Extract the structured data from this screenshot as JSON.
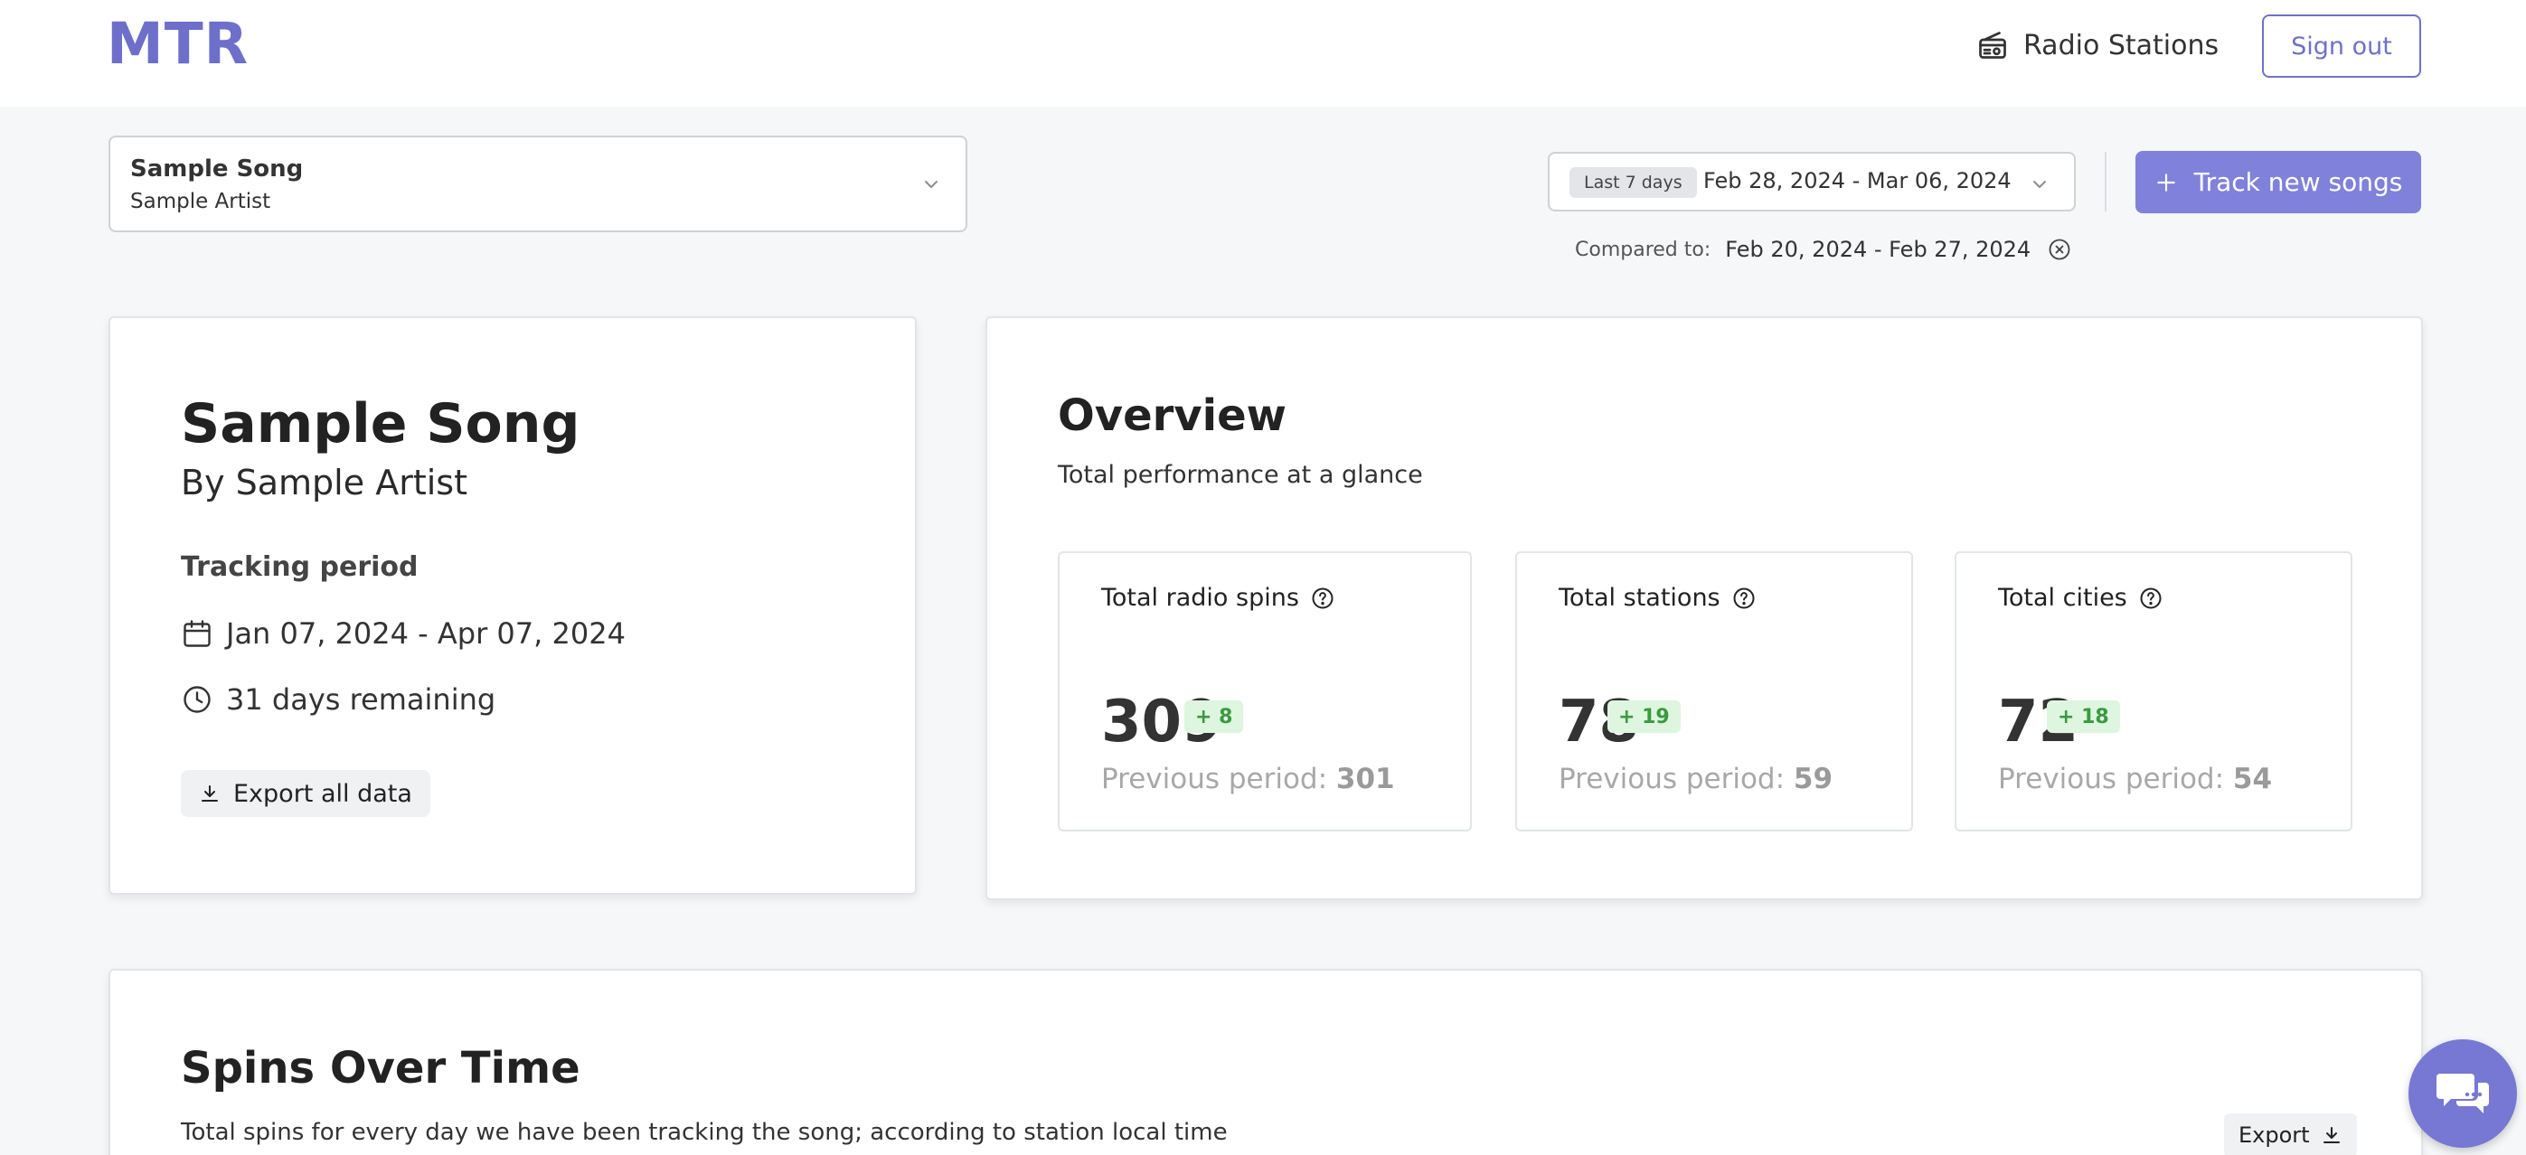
{
  "header": {
    "logo": "MTR",
    "nav_radio_stations": "Radio Stations",
    "sign_out": "Sign out"
  },
  "song_selector": {
    "song": "Sample Song",
    "artist": "Sample Artist"
  },
  "date_filter": {
    "preset": "Last 7 days",
    "range": "Feb 28, 2024 - Mar 06, 2024",
    "compared_label": "Compared to:",
    "compared_range": "Feb 20, 2024 - Feb 27, 2024"
  },
  "actions": {
    "track_new_songs": "Track new songs"
  },
  "song_card": {
    "title": "Sample Song",
    "by": "By Sample Artist",
    "tracking_title": "Tracking period",
    "tracking_range": "Jan 07, 2024 - Apr 07, 2024",
    "remaining": "31 days remaining",
    "export_all": "Export all data"
  },
  "overview": {
    "title": "Overview",
    "subtitle": "Total performance at a glance",
    "stats": [
      {
        "label": "Total radio spins",
        "value": "309",
        "delta": "+ 8",
        "prev_label": "Previous period:",
        "prev_value": "301"
      },
      {
        "label": "Total stations",
        "value": "78",
        "delta": "+ 19",
        "prev_label": "Previous period:",
        "prev_value": "59"
      },
      {
        "label": "Total cities",
        "value": "72",
        "delta": "+ 18",
        "prev_label": "Previous period:",
        "prev_value": "54"
      }
    ]
  },
  "spins_over_time": {
    "title": "Spins Over Time",
    "subtitle": "Total spins for every day we have been tracking the song; according to station local time",
    "export": "Export"
  },
  "icons": {
    "radio": "radio-icon",
    "calendar": "calendar-icon",
    "clock": "clock-icon",
    "download": "download-icon",
    "help": "help-circle-icon",
    "chat": "chat-icon"
  },
  "colors": {
    "brand": "#6d6fca",
    "primary_button": "#7f81da",
    "positive_badge_bg": "#def5df",
    "positive_badge_text": "#3a9a3e"
  }
}
